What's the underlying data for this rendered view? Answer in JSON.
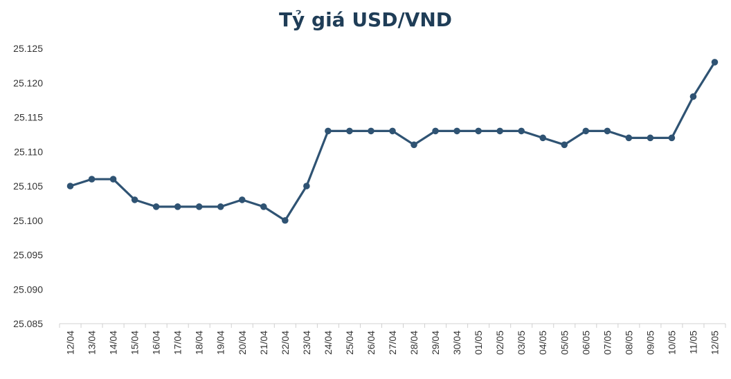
{
  "chart_data": {
    "type": "line",
    "title": "Tỷ giá USD/VND",
    "xlabel": "",
    "ylabel": "",
    "ylim": [
      25.085,
      25.125
    ],
    "yticks": [
      "25.085",
      "25.090",
      "25.095",
      "25.100",
      "25.105",
      "25.110",
      "25.115",
      "25.120",
      "25.125"
    ],
    "categories": [
      "12/04",
      "13/04",
      "14/04",
      "15/04",
      "16/04",
      "17/04",
      "18/04",
      "19/04",
      "20/04",
      "21/04",
      "22/04",
      "23/04",
      "24/04",
      "25/04",
      "26/04",
      "27/04",
      "28/04",
      "29/04",
      "30/04",
      "01/05",
      "02/05",
      "03/05",
      "04/05",
      "05/05",
      "06/05",
      "07/05",
      "08/05",
      "09/05",
      "10/05",
      "11/05",
      "12/05"
    ],
    "series": [
      {
        "values": [
          25.105,
          25.106,
          25.106,
          25.103,
          25.102,
          25.102,
          25.102,
          25.102,
          25.103,
          25.102,
          25.1,
          25.105,
          25.113,
          25.113,
          25.113,
          25.113,
          25.111,
          25.113,
          25.113,
          25.113,
          25.113,
          25.113,
          25.112,
          25.111,
          25.113,
          25.113,
          25.112,
          25.112,
          25.112,
          25.118,
          25.123
        ],
        "color": "#2f5373"
      }
    ],
    "grid": false,
    "legend": "none",
    "axis_color": "#d0d0d0"
  }
}
